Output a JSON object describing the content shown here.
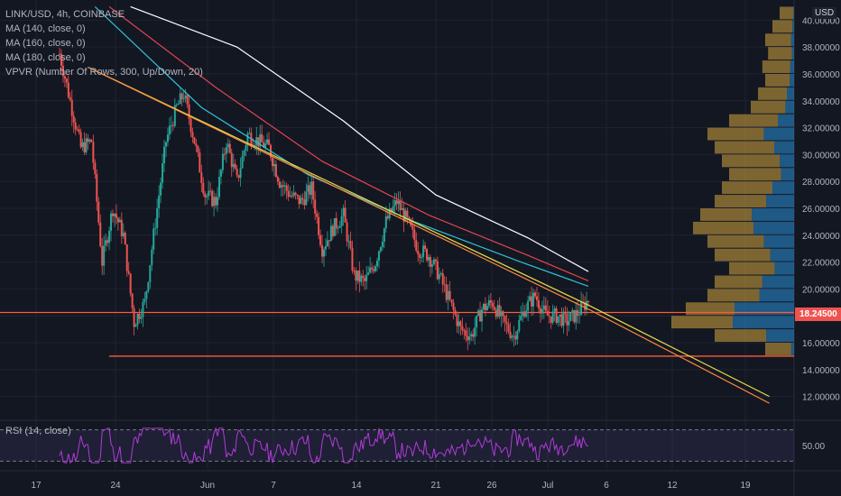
{
  "header": {
    "symbol": "LINK/USD, 4h, COINBASE",
    "indicators": [
      "MA (140, close, 0)",
      "MA (160, close, 0)",
      "MA (180, close, 0)",
      "VPVR (Number Of Rows, 300, Up/Down, 20)"
    ],
    "rsi_label": "RSI (14, close)",
    "currency": "USD",
    "current_price": "18.24500"
  },
  "colors": {
    "background": "#131722",
    "up": "#26a69a",
    "down": "#ef5350",
    "ma140": "#2ec4d6",
    "ma160": "#e0454f",
    "ma180": "#ffffff",
    "trend_yellow": "#e8e04a",
    "trend_orange": "#ff8a3d",
    "support": "#ff5a3c",
    "rsi": "#b03cd8",
    "vp_up": "#2a8fd8",
    "vp_down": "#d6a640"
  },
  "chart_data": {
    "type": "candlestick",
    "ylim": [
      10.5,
      41.5
    ],
    "y_ticks": [
      "12.00000",
      "14.00000",
      "16.00000",
      "18.00000",
      "20.00000",
      "22.00000",
      "24.00000",
      "26.00000",
      "28.00000",
      "30.00000",
      "32.00000",
      "34.00000",
      "36.00000",
      "38.00000",
      "40.00000"
    ],
    "x_tick_labels": [
      "17",
      "24",
      "Jun",
      "7",
      "14",
      "21",
      "26",
      "Jul",
      "6",
      "12",
      "19"
    ],
    "price_path": [
      [
        0,
        37.5
      ],
      [
        3,
        34.0
      ],
      [
        6,
        30.5
      ],
      [
        9,
        31.0
      ],
      [
        12,
        22.0
      ],
      [
        15,
        26.0
      ],
      [
        18,
        24.0
      ],
      [
        21,
        17.5
      ],
      [
        24,
        19.0
      ],
      [
        27,
        25.0
      ],
      [
        30,
        31.0
      ],
      [
        33,
        33.5
      ],
      [
        35,
        34.5
      ],
      [
        38,
        31.0
      ],
      [
        41,
        27.0
      ],
      [
        44,
        26.5
      ],
      [
        47,
        31.0
      ],
      [
        50,
        28.0
      ],
      [
        53,
        31.5
      ],
      [
        56,
        31.0
      ],
      [
        59,
        30.5
      ],
      [
        62,
        28.0
      ],
      [
        65,
        27.0
      ],
      [
        68,
        26.5
      ],
      [
        71,
        27.5
      ],
      [
        74,
        23.0
      ],
      [
        77,
        24.5
      ],
      [
        80,
        25.5
      ],
      [
        83,
        21.0
      ],
      [
        86,
        20.5
      ],
      [
        89,
        22.0
      ],
      [
        92,
        25.0
      ],
      [
        95,
        26.5
      ],
      [
        98,
        25.0
      ],
      [
        101,
        23.0
      ],
      [
        104,
        22.5
      ],
      [
        107,
        21.0
      ],
      [
        110,
        19.0
      ],
      [
        113,
        17.0
      ],
      [
        116,
        16.5
      ],
      [
        119,
        18.5
      ],
      [
        122,
        19.0
      ],
      [
        125,
        17.5
      ],
      [
        128,
        16.5
      ],
      [
        131,
        18.5
      ],
      [
        134,
        19.5
      ],
      [
        137,
        18.0
      ],
      [
        140,
        18.0
      ],
      [
        143,
        17.6
      ],
      [
        146,
        18.2
      ],
      [
        149,
        19.2
      ]
    ],
    "path_x_end_date_index": 149,
    "ma": [
      {
        "name": "MA (140, close, 0)",
        "color_key": "ma140",
        "points": [
          [
            10,
            41.0
          ],
          [
            40,
            33.5
          ],
          [
            70,
            28.5
          ],
          [
            100,
            25.0
          ],
          [
            130,
            22.0
          ],
          [
            149,
            20.2
          ]
        ]
      },
      {
        "name": "MA (160, close, 0)",
        "color_key": "ma160",
        "points": [
          [
            14,
            41.0
          ],
          [
            44,
            35.0
          ],
          [
            74,
            29.5
          ],
          [
            104,
            25.5
          ],
          [
            132,
            22.5
          ],
          [
            149,
            20.6
          ]
        ]
      },
      {
        "name": "MA (180, close, 0)",
        "color_key": "ma180",
        "points": [
          [
            20,
            41.0
          ],
          [
            50,
            38.0
          ],
          [
            80,
            32.5
          ],
          [
            106,
            27.0
          ],
          [
            132,
            23.8
          ],
          [
            149,
            21.3
          ]
        ]
      }
    ],
    "trendlines": [
      {
        "color_key": "trend_yellow",
        "points": [
          [
            8,
            36.5
          ],
          [
            149,
            18.8
          ],
          [
            200,
            12.0
          ]
        ]
      },
      {
        "color_key": "trend_orange",
        "points": [
          [
            8,
            36.5
          ],
          [
            149,
            18.5
          ],
          [
            200,
            11.5
          ]
        ]
      }
    ],
    "horizontal_lines": [
      {
        "color_key": "support",
        "value": 18.25,
        "from": 0
      },
      {
        "color_key": "support",
        "value": 15.0,
        "from": 21
      }
    ],
    "volume_profile": [
      [
        40.5,
        0.1,
        0.05
      ],
      [
        39.5,
        0.15,
        0.08
      ],
      [
        38.5,
        0.2,
        0.1
      ],
      [
        37.5,
        0.18,
        0.08
      ],
      [
        36.5,
        0.22,
        0.12
      ],
      [
        35.5,
        0.2,
        0.15
      ],
      [
        34.5,
        0.25,
        0.2
      ],
      [
        33.5,
        0.3,
        0.2
      ],
      [
        32.5,
        0.45,
        0.25
      ],
      [
        31.5,
        0.6,
        0.35
      ],
      [
        30.5,
        0.55,
        0.25
      ],
      [
        29.5,
        0.5,
        0.2
      ],
      [
        28.5,
        0.45,
        0.2
      ],
      [
        27.5,
        0.5,
        0.3
      ],
      [
        26.5,
        0.55,
        0.35
      ],
      [
        25.5,
        0.65,
        0.45
      ],
      [
        24.5,
        0.7,
        0.4
      ],
      [
        23.5,
        0.6,
        0.35
      ],
      [
        22.5,
        0.55,
        0.3
      ],
      [
        21.5,
        0.45,
        0.3
      ],
      [
        20.5,
        0.55,
        0.4
      ],
      [
        19.5,
        0.6,
        0.4
      ],
      [
        18.5,
        0.75,
        0.55
      ],
      [
        17.5,
        0.85,
        0.5
      ],
      [
        16.5,
        0.55,
        0.35
      ],
      [
        15.5,
        0.2,
        0.1
      ]
    ],
    "rsi": {
      "ylim": [
        20,
        80
      ],
      "levels": [
        70,
        30
      ],
      "tick": "50.00"
    }
  }
}
